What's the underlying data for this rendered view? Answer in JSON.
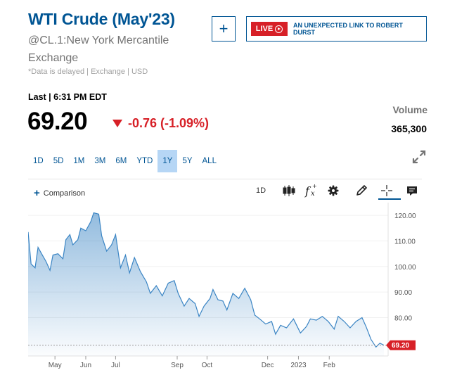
{
  "quote": {
    "title": "WTI Crude (May'23)",
    "exchange": "@CL.1:New York Mercantile Exchange",
    "delayed_note": "*Data is delayed | Exchange | USD",
    "last_label": "Last | 6:31 PM EDT",
    "price": "69.20",
    "change": "-0.76 (-1.09%)",
    "volume_label": "Volume",
    "volume_value": "365,300"
  },
  "actions": {
    "add_label": "+",
    "live_badge": "LIVE",
    "live_headline": "AN UNEXPECTED LINK TO ROBERT DURST"
  },
  "ranges": [
    "1D",
    "5D",
    "1M",
    "3M",
    "6M",
    "YTD",
    "1Y",
    "5Y",
    "ALL"
  ],
  "active_range": "1Y",
  "toolbar": {
    "comparison_label": "Comparison",
    "interval_label": "1D",
    "icons": [
      "candlestick-icon",
      "function-icon",
      "gear-icon",
      "pencil-icon",
      "crosshair-icon",
      "comment-icon"
    ]
  },
  "colors": {
    "brand": "#005594",
    "down": "#d72027",
    "line": "#3b85c4",
    "active_range_bg": "#b6d6f5"
  },
  "chart_data": {
    "type": "area",
    "ylim": [
      65,
      125
    ],
    "yticks": [
      "120.00",
      "110.00",
      "100.00",
      "90.00",
      "80.00"
    ],
    "ytick_values": [
      120,
      110,
      100,
      90,
      80
    ],
    "xticks": [
      "May",
      "Jun",
      "Jul",
      "Sep",
      "Oct",
      "Dec",
      "2023",
      "Feb"
    ],
    "x": [
      "2022-04-04",
      "2022-04-07",
      "2022-04-11",
      "2022-04-14",
      "2022-04-19",
      "2022-04-22",
      "2022-04-26",
      "2022-04-29",
      "2022-05-04",
      "2022-05-09",
      "2022-05-12",
      "2022-05-16",
      "2022-05-19",
      "2022-05-24",
      "2022-05-27",
      "2022-06-01",
      "2022-06-06",
      "2022-06-09",
      "2022-06-14",
      "2022-06-17",
      "2022-06-22",
      "2022-06-27",
      "2022-07-01",
      "2022-07-06",
      "2022-07-11",
      "2022-07-15",
      "2022-07-20",
      "2022-07-26",
      "2022-08-01",
      "2022-08-05",
      "2022-08-11",
      "2022-08-17",
      "2022-08-23",
      "2022-08-29",
      "2022-09-02",
      "2022-09-08",
      "2022-09-13",
      "2022-09-19",
      "2022-09-23",
      "2022-09-28",
      "2022-10-04",
      "2022-10-07",
      "2022-10-12",
      "2022-10-17",
      "2022-10-21",
      "2022-10-27",
      "2022-11-02",
      "2022-11-08",
      "2022-11-14",
      "2022-11-18",
      "2022-11-23",
      "2022-11-29",
      "2022-12-05",
      "2022-12-09",
      "2022-12-14",
      "2022-12-20",
      "2022-12-27",
      "2023-01-03",
      "2023-01-09",
      "2023-01-13",
      "2023-01-19",
      "2023-01-25",
      "2023-01-31",
      "2023-02-06",
      "2023-02-10",
      "2023-02-16",
      "2023-02-22",
      "2023-02-28",
      "2023-03-06",
      "2023-03-10",
      "2023-03-15",
      "2023-03-20",
      "2023-03-24",
      "2023-03-28"
    ],
    "series": [
      {
        "values": [
          113.5,
          101.0,
          99.5,
          107.5,
          104.0,
          102.0,
          98.5,
          104.5,
          105.0,
          103.0,
          110.5,
          112.5,
          108.5,
          110.5,
          115.0,
          114.0,
          117.5,
          121.0,
          120.5,
          112.0,
          106.0,
          108.5,
          112.5,
          99.5,
          104.5,
          97.5,
          103.5,
          98.0,
          94.0,
          89.5,
          92.5,
          88.5,
          93.5,
          94.5,
          89.5,
          84.5,
          87.5,
          85.5,
          80.5,
          84.5,
          87.5,
          91.0,
          87.0,
          86.5,
          83.0,
          89.5,
          87.5,
          91.5,
          87.0,
          81.0,
          79.5,
          77.5,
          78.5,
          73.5,
          77.0,
          76.0,
          79.5,
          74.0,
          76.5,
          79.5,
          79.0,
          80.5,
          78.5,
          75.5,
          80.5,
          78.5,
          76.0,
          78.5,
          80.0,
          76.5,
          71.5,
          68.5,
          70.0,
          69.2
        ]
      }
    ],
    "last_value": "69.20",
    "grid": "horizontal"
  }
}
